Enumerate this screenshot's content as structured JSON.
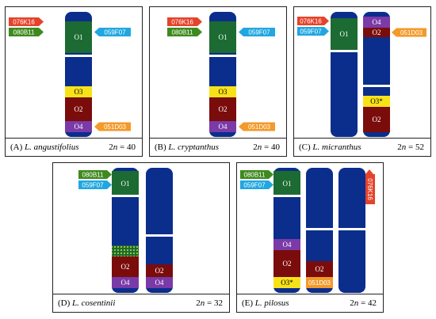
{
  "colors": {
    "chromosome": "#0b2d8c",
    "O1": "#1c6b32",
    "O2": "#7b0c0c",
    "O3": "#f7e21a",
    "O4": "#7a3aa8",
    "tag_076K16": "#e5432b",
    "tag_080B11": "#3f8a1f",
    "tag_059F07": "#20a7e0",
    "tag_051D03": "#f29a2a"
  },
  "panels": [
    {
      "letter": "(A)",
      "species": "L. angustifolius",
      "two_n_prefix": "2",
      "two_n_var": "n",
      "two_n_value": " = 40",
      "labels": {
        "O1": "O1",
        "O3": "O3",
        "O2": "O2",
        "O4": "O4"
      },
      "tags": {
        "076K16": "076K16",
        "080B11": "080B11",
        "059F07": "059F07",
        "051D03": "051D03"
      }
    },
    {
      "letter": "(B)",
      "species": "L. cryptanthus",
      "two_n_prefix": "2",
      "two_n_var": "n",
      "two_n_value": " = 40",
      "labels": {
        "O1": "O1",
        "O3": "O3",
        "O2": "O2",
        "O4": "O4"
      },
      "tags": {
        "076K16": "076K16",
        "080B11": "080B11",
        "059F07": "059F07",
        "051D03": "051D03"
      }
    },
    {
      "letter": "(C)",
      "species": "L. micranthus",
      "two_n_prefix": "2",
      "two_n_var": "n",
      "two_n_value": " = 52",
      "labels": {
        "O1": "O1",
        "O4": "O4",
        "O2a": "O2",
        "O3s": "O3*",
        "O2b": "O2"
      },
      "tags": {
        "076K16": "076K16",
        "059F07": "059F07",
        "051D03": "051D03"
      }
    },
    {
      "letter": "(D)",
      "species": "L. cosentinii",
      "two_n_prefix": "2",
      "two_n_var": "n",
      "two_n_value": " = 32",
      "labels": {
        "O1": "O1",
        "O2a": "O2",
        "O4a": "O4",
        "O2b": "O2",
        "O4b": "O4"
      },
      "tags": {
        "080B11": "080B11",
        "059F07": "059F07"
      }
    },
    {
      "letter": "(E)",
      "species": "L. pilosus",
      "two_n_prefix": "2",
      "two_n_var": "n",
      "two_n_value": " = 42",
      "labels": {
        "O1": "O1",
        "O4": "O4",
        "O2a": "O2",
        "O3s": "O3*",
        "O2b": "O2",
        "seg051": "051D03"
      },
      "tags": {
        "080B11": "080B11",
        "059F07": "059F07",
        "076K16": "076K16"
      }
    }
  ]
}
